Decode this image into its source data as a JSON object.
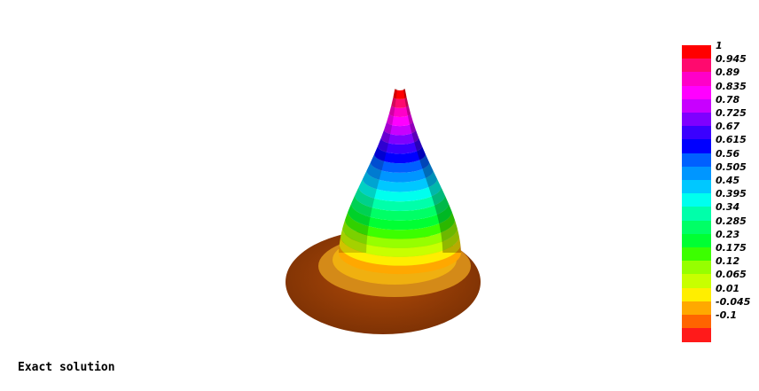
{
  "caption": "Exact solution",
  "colorbar": {
    "labels": [
      "1",
      "0.945",
      "0.89",
      "0.835",
      "0.78",
      "0.725",
      "0.67",
      "0.615",
      "0.56",
      "0.505",
      "0.45",
      "0.395",
      "0.34",
      "0.285",
      "0.23",
      "0.175",
      "0.12",
      "0.065",
      "0.01",
      "-0.045",
      "-0.1"
    ],
    "colors": [
      "#ff0000",
      "#ff0a6e",
      "#ff00c8",
      "#ff00ff",
      "#c800ff",
      "#7f00ff",
      "#3a00ff",
      "#0000ff",
      "#0060ff",
      "#0096ff",
      "#00c8ff",
      "#00ffee",
      "#00ffaa",
      "#00ff66",
      "#00ff33",
      "#3cff00",
      "#96ff00",
      "#c8ff00",
      "#ffee00",
      "#ffa800",
      "#ff6400",
      "#ff1a1a"
    ]
  },
  "surface_bands": [
    "#ff0000",
    "#ff0a6e",
    "#ff00c8",
    "#ff00ff",
    "#c800ff",
    "#7f00ff",
    "#3a00ff",
    "#0000ff",
    "#0060ff",
    "#0096ff",
    "#00c8ff",
    "#00ffee",
    "#00ffaa",
    "#00ff66",
    "#00ff33",
    "#3cff00",
    "#96ff00",
    "#c8ff00",
    "#ffee00",
    "#ffa800",
    "#d77a10",
    "#8b3a08"
  ]
}
